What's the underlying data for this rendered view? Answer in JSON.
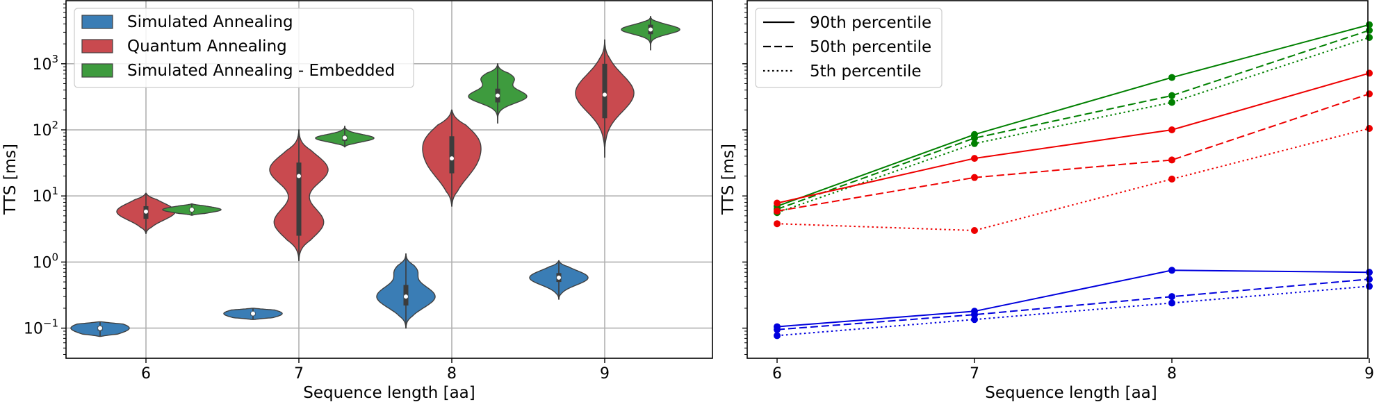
{
  "chart_data": [
    {
      "type": "violin",
      "xlabel": "Sequence length [aa]",
      "ylabel": "TTS [ms]",
      "yscale": "log",
      "ylim": [
        0.035,
        9000
      ],
      "categories": [
        6,
        7,
        8,
        9
      ],
      "xticklabels": [
        "6",
        "7",
        "8",
        "9"
      ],
      "yticks": [
        0.1,
        1,
        10,
        100,
        1000
      ],
      "yticklabels": [
        {
          "base": "10",
          "exp": "−1"
        },
        {
          "base": "10",
          "exp": "0"
        },
        {
          "base": "10",
          "exp": "1"
        },
        {
          "base": "10",
          "exp": "2"
        },
        {
          "base": "10",
          "exp": "3"
        }
      ],
      "grid": true,
      "legend_position": "top-left",
      "series": [
        {
          "name": "Simulated Annealing",
          "color": "#3a7db5",
          "violins": [
            {
              "x": 6,
              "min": 0.075,
              "max": 0.125,
              "q1": 0.092,
              "median": 0.1,
              "q3": 0.107,
              "modes": [
                {
                  "v": 0.1,
                  "s": 0.09,
                  "w": 1.0
                }
              ]
            },
            {
              "x": 7,
              "min": 0.135,
              "max": 0.2,
              "q1": 0.155,
              "median": 0.166,
              "q3": 0.175,
              "modes": [
                {
                  "v": 0.166,
                  "s": 0.07,
                  "w": 1.0
                }
              ]
            },
            {
              "x": 8,
              "min": 0.1,
              "max": 1.35,
              "q1": 0.22,
              "median": 0.3,
              "q3": 0.45,
              "modes": [
                {
                  "v": 0.3,
                  "s": 0.17,
                  "w": 1.0
                },
                {
                  "v": 0.75,
                  "s": 0.1,
                  "w": 0.33
                }
              ]
            },
            {
              "x": 9,
              "min": 0.27,
              "max": 1.05,
              "q1": 0.5,
              "median": 0.58,
              "q3": 0.68,
              "modes": [
                {
                  "v": 0.58,
                  "s": 0.11,
                  "w": 1.0
                }
              ]
            }
          ]
        },
        {
          "name": "Quantum Annealing",
          "color": "#c94a4f",
          "violins": [
            {
              "x": 6,
              "min": 2.7,
              "max": 11,
              "q1": 4.5,
              "median": 5.8,
              "q3": 7.0,
              "modes": [
                {
                  "v": 5.8,
                  "s": 0.13,
                  "w": 1.0
                }
              ]
            },
            {
              "x": 7,
              "min": 1.05,
              "max": 100,
              "q1": 2.5,
              "median": 20,
              "q3": 32,
              "modes": [
                {
                  "v": 25,
                  "s": 0.22,
                  "w": 1.0
                },
                {
                  "v": 4.0,
                  "s": 0.22,
                  "w": 0.85
                }
              ]
            },
            {
              "x": 8,
              "min": 7,
              "max": 200,
              "q1": 22,
              "median": 37,
              "q3": 80,
              "modes": [
                {
                  "v": 35,
                  "s": 0.28,
                  "w": 1.0
                },
                {
                  "v": 80,
                  "s": 0.2,
                  "w": 0.6
                }
              ]
            },
            {
              "x": 9,
              "min": 38,
              "max": 2300,
              "q1": 150,
              "median": 340,
              "q3": 1000,
              "modes": [
                {
                  "v": 360,
                  "s": 0.28,
                  "w": 1.0
                }
              ]
            }
          ]
        },
        {
          "name": "Simulated Annealing - Embedded",
          "color": "#3e9b3e",
          "violins": [
            {
              "x": 6,
              "min": 5.1,
              "max": 7.6,
              "q1": 5.8,
              "median": 6.2,
              "q3": 6.6,
              "modes": [
                {
                  "v": 6.2,
                  "s": 0.045,
                  "w": 1.0
                }
              ]
            },
            {
              "x": 7,
              "min": 55,
              "max": 115,
              "q1": 68,
              "median": 76,
              "q3": 82,
              "modes": [
                {
                  "v": 75,
                  "s": 0.055,
                  "w": 1.0
                }
              ]
            },
            {
              "x": 8,
              "min": 125,
              "max": 1000,
              "q1": 260,
              "median": 330,
              "q3": 420,
              "modes": [
                {
                  "v": 320,
                  "s": 0.1,
                  "w": 1.0
                },
                {
                  "v": 600,
                  "s": 0.09,
                  "w": 0.55
                }
              ]
            },
            {
              "x": 9,
              "min": 1600,
              "max": 5200,
              "q1": 2800,
              "median": 3300,
              "q3": 3900,
              "modes": [
                {
                  "v": 3300,
                  "s": 0.07,
                  "w": 1.0
                }
              ]
            }
          ]
        }
      ]
    },
    {
      "type": "line",
      "xlabel": "Sequence length [aa]",
      "ylabel": "TTS [ms]",
      "yscale": "log",
      "ylim": [
        0.035,
        9000
      ],
      "x": [
        6,
        7,
        8,
        9
      ],
      "xticklabels": [
        "6",
        "7",
        "8",
        "9"
      ],
      "grid": false,
      "legend_position": "top-left",
      "legend": [
        {
          "label": "90th percentile",
          "dash": "solid"
        },
        {
          "label": "50th percentile",
          "dash": "dashed"
        },
        {
          "label": "5th percentile",
          "dash": "dotted"
        }
      ],
      "series": [
        {
          "group": "Simulated Annealing - Embedded",
          "percentile": "90th",
          "dash": "solid",
          "color": "#008000",
          "values": [
            7.0,
            85,
            620,
            3900
          ]
        },
        {
          "group": "Simulated Annealing - Embedded",
          "percentile": "50th",
          "dash": "dashed",
          "color": "#008000",
          "values": [
            6.3,
            75,
            330,
            3200
          ]
        },
        {
          "group": "Simulated Annealing - Embedded",
          "percentile": "5th",
          "dash": "dotted",
          "color": "#008000",
          "values": [
            5.6,
            62,
            260,
            2500
          ]
        },
        {
          "group": "Quantum Annealing",
          "percentile": "90th",
          "dash": "solid",
          "color": "#ee0000",
          "values": [
            7.8,
            37,
            100,
            720
          ]
        },
        {
          "group": "Quantum Annealing",
          "percentile": "50th",
          "dash": "dashed",
          "color": "#ee0000",
          "values": [
            5.9,
            19,
            35,
            350
          ]
        },
        {
          "group": "Quantum Annealing",
          "percentile": "5th",
          "dash": "dotted",
          "color": "#ee0000",
          "values": [
            3.8,
            3.0,
            18,
            105
          ]
        },
        {
          "group": "Simulated Annealing",
          "percentile": "90th",
          "dash": "solid",
          "color": "#0000dd",
          "values": [
            0.105,
            0.18,
            0.75,
            0.7
          ]
        },
        {
          "group": "Simulated Annealing",
          "percentile": "50th",
          "dash": "dashed",
          "color": "#0000dd",
          "values": [
            0.095,
            0.16,
            0.3,
            0.55
          ]
        },
        {
          "group": "Simulated Annealing",
          "percentile": "5th",
          "dash": "dotted",
          "color": "#0000dd",
          "values": [
            0.077,
            0.135,
            0.24,
            0.43
          ]
        }
      ]
    }
  ]
}
